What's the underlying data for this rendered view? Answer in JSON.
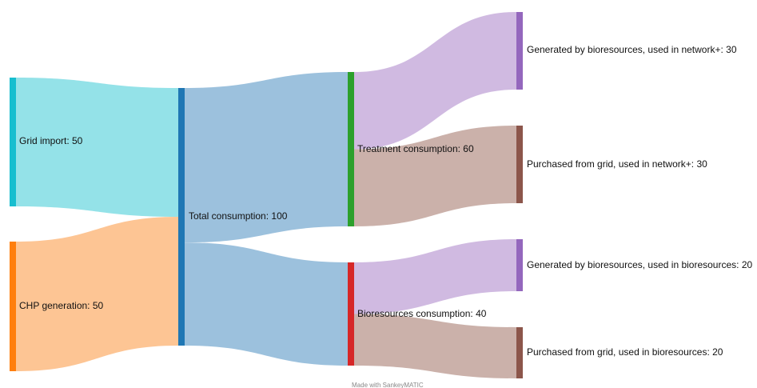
{
  "diagram": {
    "type": "sankey",
    "nodes": [
      {
        "id": "grid",
        "label": "Grid import: 50",
        "color": "#17becf"
      },
      {
        "id": "chp",
        "label": "CHP generation: 50",
        "color": "#ff7f0e"
      },
      {
        "id": "total",
        "label": "Total consumption: 100",
        "color": "#1f77b4"
      },
      {
        "id": "treat",
        "label": "Treatment consumption: 60",
        "color": "#2ca02c"
      },
      {
        "id": "bio",
        "label": "Bioresources consumption: 40",
        "color": "#d62728"
      },
      {
        "id": "gen_net",
        "label": "Generated by bioresources, used in network+: 30",
        "color": "#9467bd"
      },
      {
        "id": "pur_net",
        "label": "Purchased from grid, used in network+: 30",
        "color": "#8c564b"
      },
      {
        "id": "gen_bio",
        "label": "Generated by bioresources, used in bioresources: 20",
        "color": "#9467bd"
      },
      {
        "id": "pur_bio",
        "label": "Purchased from grid, used in bioresources: 20",
        "color": "#8c564b"
      }
    ],
    "flows": [
      {
        "from": "grid",
        "to": "total",
        "value": 50,
        "color": "#94e2e8"
      },
      {
        "from": "chp",
        "to": "total",
        "value": 50,
        "color": "#fdc594"
      },
      {
        "from": "total",
        "to": "treat",
        "value": 60,
        "color": "#9cc1dd"
      },
      {
        "from": "total",
        "to": "bio",
        "value": 40,
        "color": "#9cc1dd"
      },
      {
        "from": "treat",
        "to": "gen_net",
        "value": 30,
        "color": "#d0bae1"
      },
      {
        "from": "treat",
        "to": "pur_net",
        "value": 30,
        "color": "#cbb1aa"
      },
      {
        "from": "bio",
        "to": "gen_bio",
        "value": 20,
        "color": "#d0bae1"
      },
      {
        "from": "bio",
        "to": "pur_bio",
        "value": 20,
        "color": "#cbb1aa"
      }
    ]
  },
  "footer": {
    "credit": "Made with SankeyMATIC"
  }
}
